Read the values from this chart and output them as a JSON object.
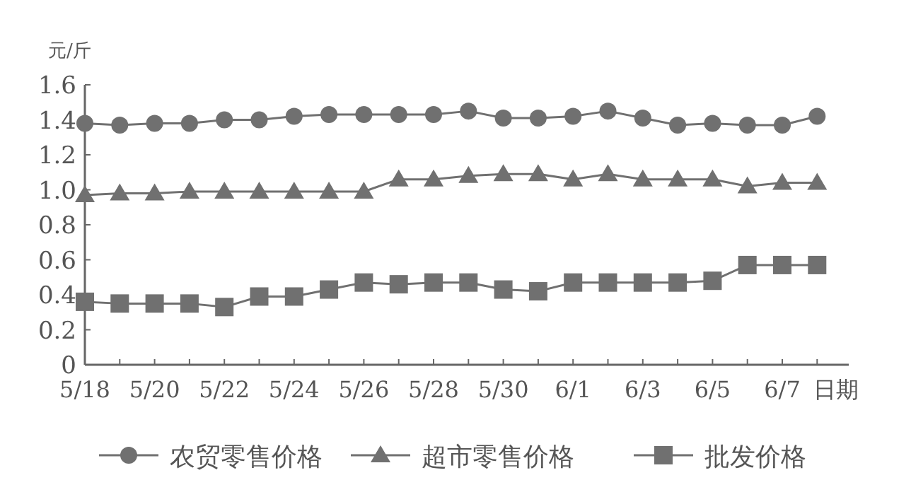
{
  "chart_data": {
    "type": "line",
    "ylabel": "元/斤",
    "xlabel": "日期",
    "categories": [
      "5/18",
      null,
      "5/20",
      null,
      "5/22",
      null,
      "5/24",
      null,
      "5/26",
      null,
      "5/28",
      null,
      "5/30",
      null,
      "6/1",
      null,
      "6/3",
      null,
      "6/5",
      null,
      "6/7",
      null
    ],
    "ylim": [
      0,
      1.6
    ],
    "yticks": [
      0,
      0.2,
      0.4,
      0.6,
      0.8,
      {
        "value": 1,
        "label": "1.0"
      },
      1.2,
      1.4,
      1.6
    ],
    "grid": false,
    "legend": "bottom",
    "series": [
      {
        "name": "农贸零售价格",
        "color": "#707070",
        "marker": "circle",
        "values": [
          1.38,
          1.37,
          1.38,
          1.38,
          1.4,
          1.4,
          1.42,
          1.43,
          1.43,
          1.43,
          1.43,
          1.45,
          1.41,
          1.41,
          1.42,
          1.45,
          1.41,
          1.37,
          1.38,
          1.37,
          1.37,
          1.42
        ]
      },
      {
        "name": "超市零售价格",
        "color": "#707070",
        "marker": "triangle",
        "values": [
          0.97,
          0.98,
          0.98,
          0.99,
          0.99,
          0.99,
          0.99,
          0.99,
          0.99,
          1.06,
          1.06,
          1.08,
          1.09,
          1.09,
          1.06,
          1.09,
          1.06,
          1.06,
          1.06,
          1.02,
          1.04,
          1.04
        ]
      },
      {
        "name": "批发价格",
        "color": "#707070",
        "marker": "square",
        "values": [
          0.36,
          0.35,
          0.35,
          0.35,
          0.33,
          0.39,
          0.39,
          0.43,
          0.47,
          0.46,
          0.47,
          0.47,
          0.43,
          0.42,
          0.47,
          0.47,
          0.47,
          0.47,
          0.48,
          0.57,
          0.57,
          0.57
        ]
      }
    ]
  }
}
